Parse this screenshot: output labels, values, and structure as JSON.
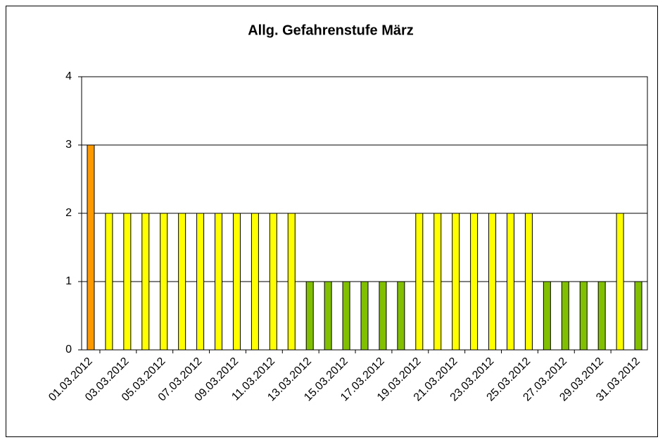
{
  "chart_data": {
    "type": "bar",
    "title": "Allg. Gefahrenstufe März",
    "categories": [
      "01.03.2012",
      null,
      "03.03.2012",
      null,
      "05.03.2012",
      null,
      "07.03.2012",
      null,
      "09.03.2012",
      null,
      "11.03.2012",
      null,
      "13.03.2012",
      null,
      "15.03.2012",
      null,
      "17.03.2012",
      null,
      "19.03.2012",
      null,
      "21.03.2012",
      null,
      "23.03.2012",
      null,
      "25.03.2012",
      null,
      "27.03.2012",
      null,
      "29.03.2012",
      null,
      "31.03.2012"
    ],
    "values": [
      3,
      2,
      2,
      2,
      2,
      2,
      2,
      2,
      2,
      2,
      2,
      2,
      1,
      1,
      1,
      1,
      1,
      1,
      2,
      2,
      2,
      2,
      2,
      2,
      2,
      1,
      1,
      1,
      1,
      2,
      1
    ],
    "colors": [
      "#ff9900",
      "#ffff00",
      "#ffff00",
      "#ffff00",
      "#ffff00",
      "#ffff00",
      "#ffff00",
      "#ffff00",
      "#ffff00",
      "#ffff00",
      "#ffff00",
      "#ffff00",
      "#80c000",
      "#80c000",
      "#80c000",
      "#80c000",
      "#80c000",
      "#80c000",
      "#ffff00",
      "#ffff00",
      "#ffff00",
      "#ffff00",
      "#ffff00",
      "#ffff00",
      "#ffff00",
      "#80c000",
      "#80c000",
      "#80c000",
      "#80c000",
      "#ffff00",
      "#80c000"
    ],
    "ylim": [
      0,
      4
    ],
    "yticks": [
      0,
      1,
      2,
      3,
      4
    ],
    "grid": true
  }
}
